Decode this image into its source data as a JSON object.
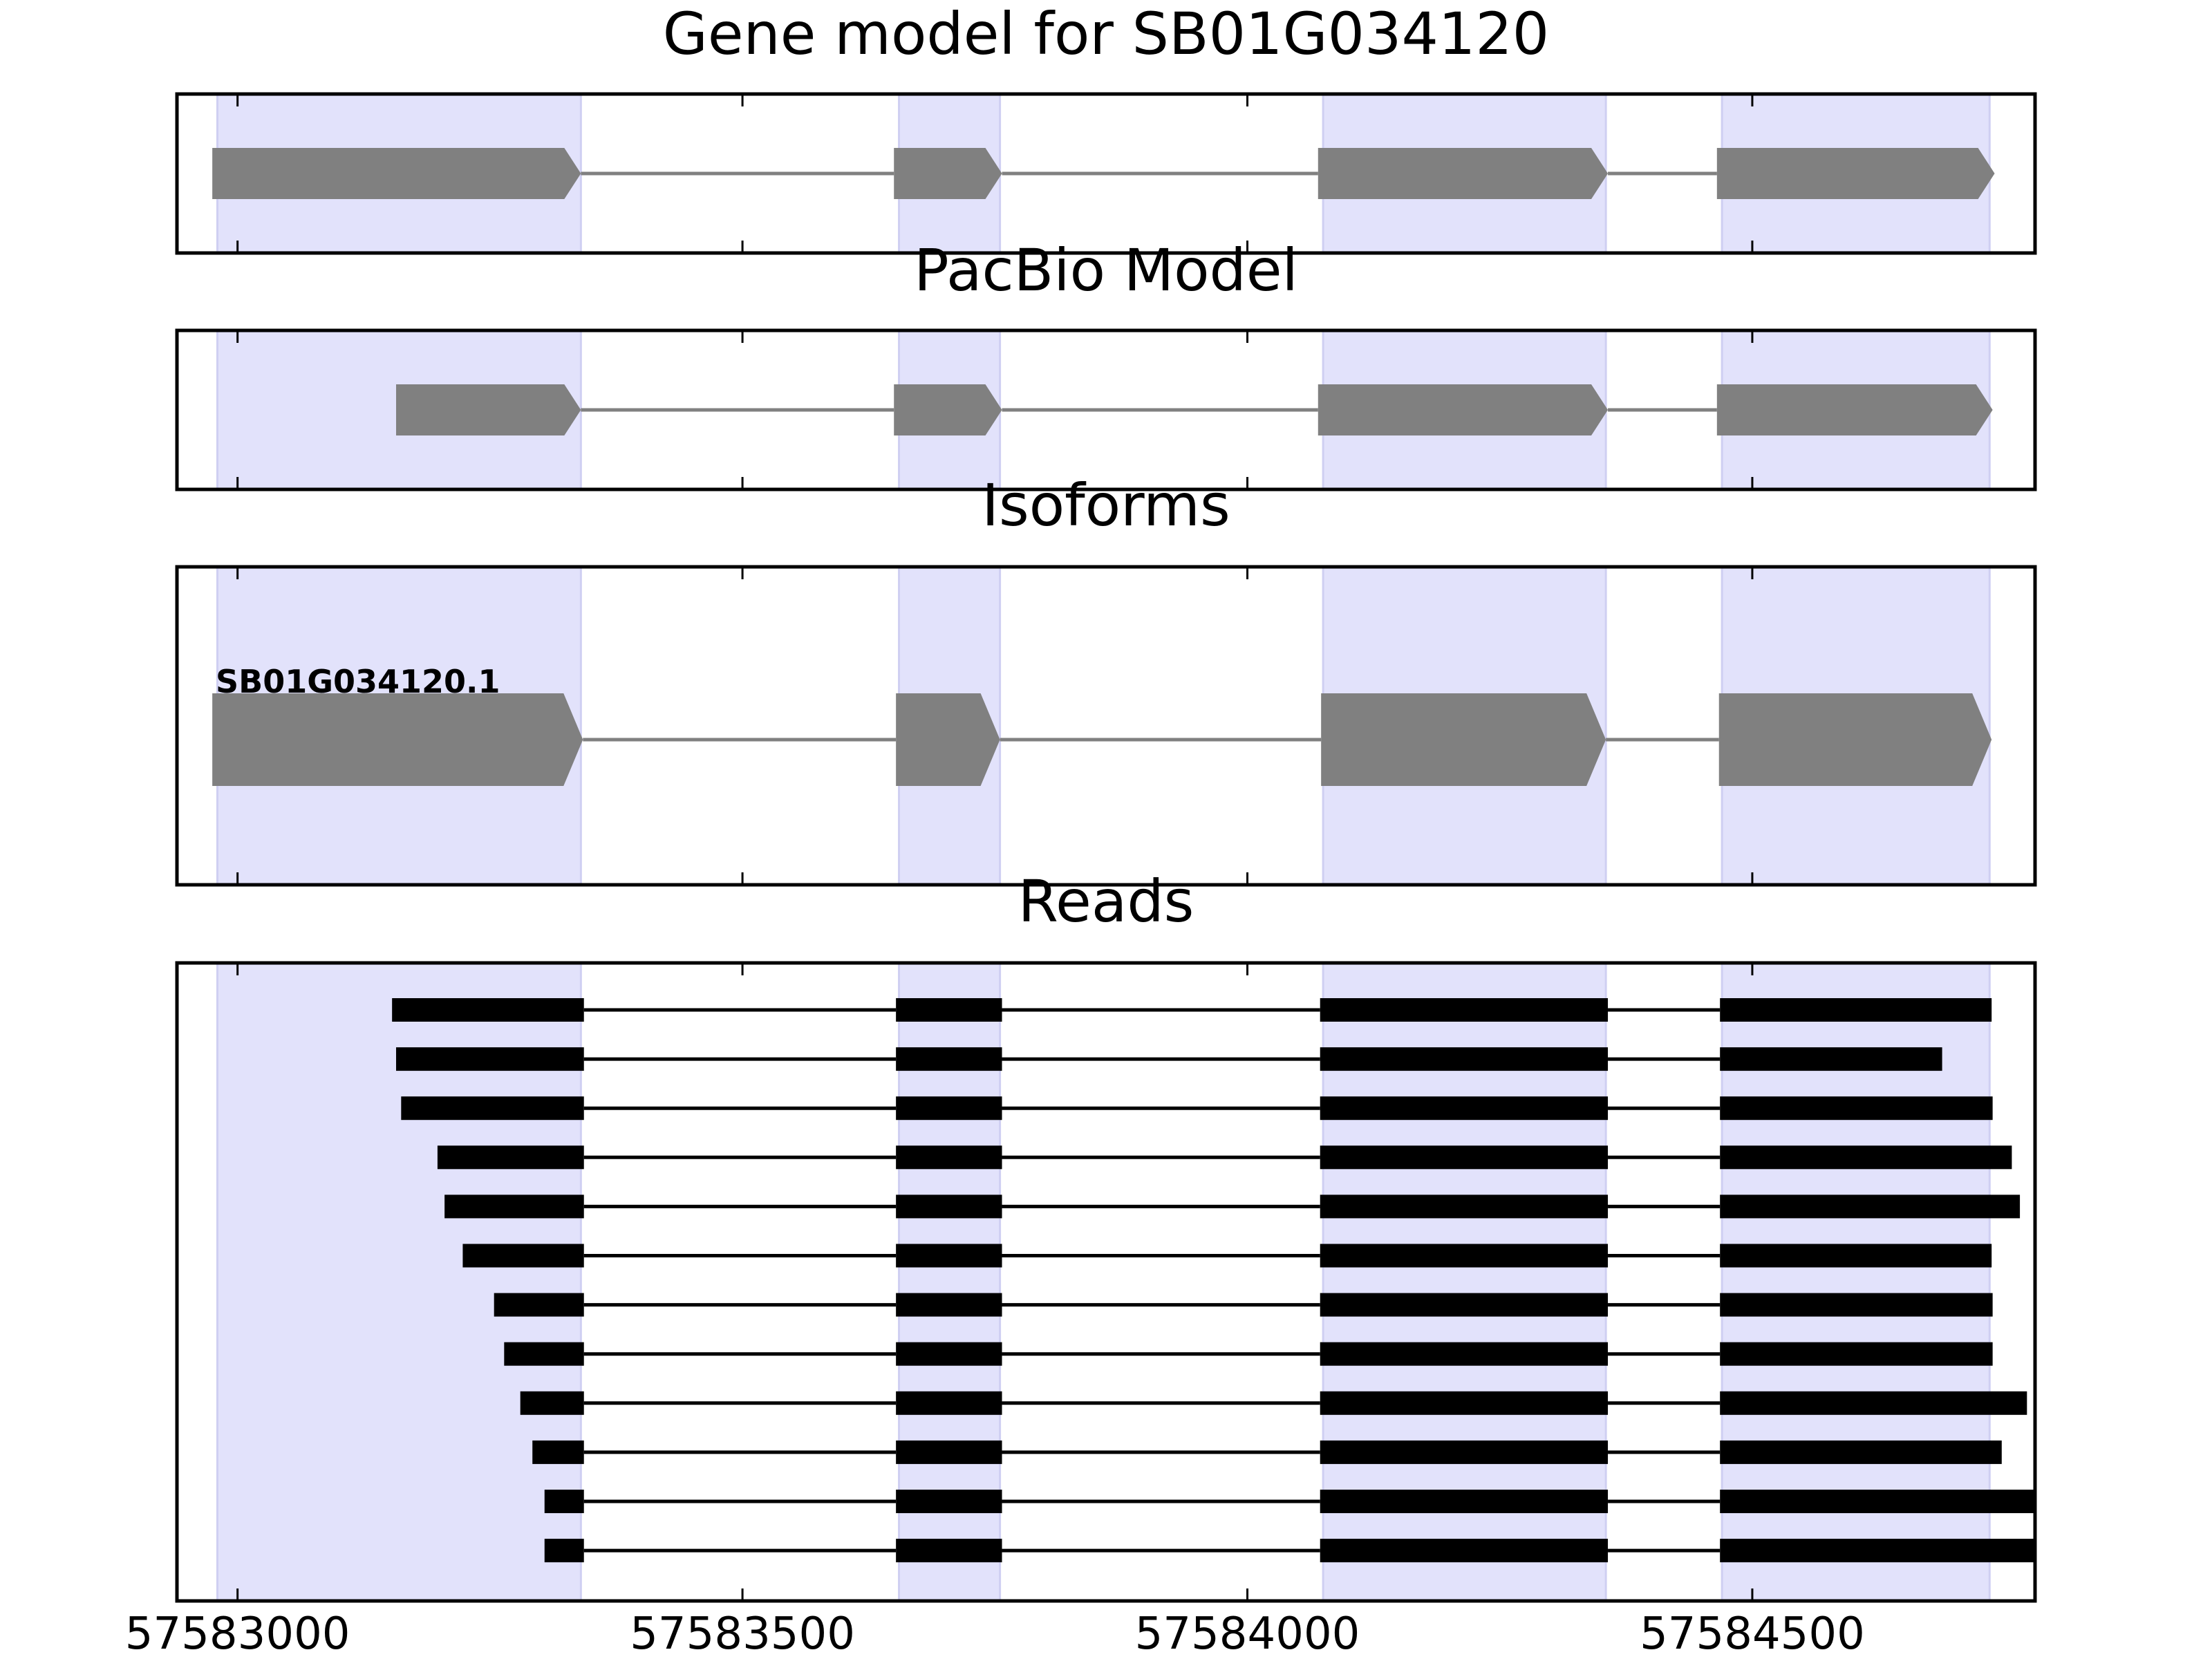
{
  "colors": {
    "exon_band": "#e2e2fb",
    "exon_band_edge": "#cfcff2",
    "model_feature": "#808080",
    "read_feature": "#000000",
    "frame": "#000000"
  },
  "chart_data": {
    "type": "gene_model",
    "x_range": [
      57582940,
      57584780
    ],
    "x_ticks": [
      57583000,
      57583500,
      57584000,
      57584500
    ],
    "x_tick_labels": [
      "57583000",
      "57583500",
      "57584000",
      "57584500"
    ],
    "exon_bands": [
      [
        57582980,
        57583340
      ],
      [
        57583655,
        57583755
      ],
      [
        57584075,
        57584355
      ],
      [
        57584470,
        57584735
      ]
    ],
    "panels": [
      {
        "title": "Gene model for SB01G034120",
        "kind": "model",
        "exons": [
          [
            57582975,
            57583340
          ],
          [
            57583650,
            57583757
          ],
          [
            57584070,
            57584357
          ],
          [
            57584465,
            57584740
          ]
        ]
      },
      {
        "title": "PacBio Model",
        "kind": "model",
        "exons": [
          [
            57583157,
            57583340
          ],
          [
            57583650,
            57583757
          ],
          [
            57584070,
            57584357
          ],
          [
            57584465,
            57584738
          ]
        ]
      },
      {
        "title": "Isoforms",
        "kind": "isoform",
        "isoform_label": "SB01G034120.1",
        "exons": [
          [
            57582975,
            57583342
          ],
          [
            57583652,
            57583755
          ],
          [
            57584073,
            57584355
          ],
          [
            57584467,
            57584737
          ]
        ]
      },
      {
        "title": "Reads",
        "kind": "reads",
        "reads": [
          [
            [
              57583153,
              57583343
            ],
            [
              57583652,
              57583757
            ],
            [
              57584072,
              57584357
            ],
            [
              57584468,
              57584737
            ]
          ],
          [
            [
              57583157,
              57583343
            ],
            [
              57583652,
              57583757
            ],
            [
              57584072,
              57584357
            ],
            [
              57584468,
              57584688
            ]
          ],
          [
            [
              57583162,
              57583343
            ],
            [
              57583652,
              57583757
            ],
            [
              57584072,
              57584357
            ],
            [
              57584468,
              57584738
            ]
          ],
          [
            [
              57583198,
              57583343
            ],
            [
              57583652,
              57583757
            ],
            [
              57584072,
              57584357
            ],
            [
              57584468,
              57584757
            ]
          ],
          [
            [
              57583205,
              57583343
            ],
            [
              57583652,
              57583757
            ],
            [
              57584072,
              57584357
            ],
            [
              57584468,
              57584765
            ]
          ],
          [
            [
              57583223,
              57583343
            ],
            [
              57583652,
              57583757
            ],
            [
              57584072,
              57584357
            ],
            [
              57584468,
              57584737
            ]
          ],
          [
            [
              57583254,
              57583343
            ],
            [
              57583652,
              57583757
            ],
            [
              57584072,
              57584357
            ],
            [
              57584468,
              57584738
            ]
          ],
          [
            [
              57583264,
              57583343
            ],
            [
              57583652,
              57583757
            ],
            [
              57584072,
              57584357
            ],
            [
              57584468,
              57584738
            ]
          ],
          [
            [
              57583280,
              57583343
            ],
            [
              57583652,
              57583757
            ],
            [
              57584072,
              57584357
            ],
            [
              57584468,
              57584772
            ]
          ],
          [
            [
              57583292,
              57583343
            ],
            [
              57583652,
              57583757
            ],
            [
              57584072,
              57584357
            ],
            [
              57584468,
              57584747
            ]
          ],
          [
            [
              57583304,
              57583343
            ],
            [
              57583652,
              57583757
            ],
            [
              57584072,
              57584357
            ],
            [
              57584468,
              57584780
            ]
          ],
          [
            [
              57583304,
              57583343
            ],
            [
              57583652,
              57583757
            ],
            [
              57584072,
              57584357
            ],
            [
              57584468,
              57584780
            ]
          ]
        ]
      }
    ]
  }
}
